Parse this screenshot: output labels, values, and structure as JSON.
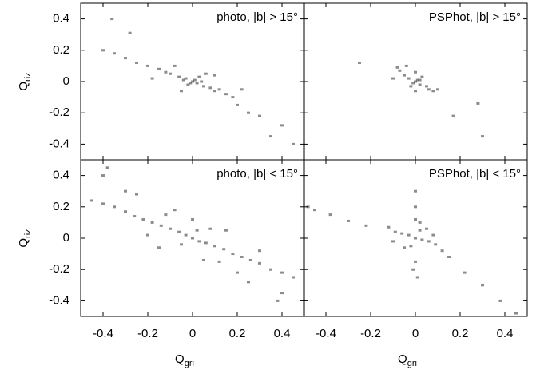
{
  "chart_data": [
    {
      "type": "scatter",
      "annotation": "photo, |b| > 15°",
      "color": "#1a1a1a",
      "xlim": [
        -0.5,
        0.5
      ],
      "ylim": [
        -0.5,
        0.5
      ],
      "xticks": [
        -0.4,
        -0.2,
        0,
        0.2,
        0.4
      ],
      "yticks": [
        -0.4,
        -0.2,
        0,
        0.2,
        0.4
      ],
      "ylabel": "Q",
      "ylabel_sub": "riz",
      "x": [
        0,
        0.02,
        -0.03,
        0.05,
        -0.06,
        0.08,
        -0.1,
        0.1,
        -0.02,
        0.03,
        0.12,
        -0.12,
        -0.15,
        0.15,
        -0.2,
        -0.25,
        -0.3,
        -0.35,
        -0.4,
        0.2,
        0.25,
        0.3,
        0.4,
        -0.36,
        -0.28,
        0.18,
        -0.05,
        0.06,
        -0.08,
        0.1,
        0.35,
        0.45,
        -0.18,
        0.22,
        0.01,
        -0.01,
        0.04,
        -0.04
      ],
      "y": [
        0,
        -0.01,
        0.02,
        -0.03,
        0.03,
        -0.04,
        0.05,
        -0.06,
        -0.02,
        0.03,
        -0.05,
        0.06,
        0.08,
        -0.08,
        0.1,
        0.12,
        0.15,
        0.18,
        0.2,
        -0.15,
        -0.2,
        -0.22,
        -0.28,
        0.4,
        0.31,
        -0.1,
        -0.06,
        0.05,
        0.1,
        0.04,
        -0.35,
        -0.4,
        0.02,
        -0.05,
        0.01,
        -0.01,
        0,
        0.01
      ]
    },
    {
      "type": "scatter",
      "annotation": "PSPhot, |b| > 15°",
      "color": "#1a1a1a",
      "xlim": [
        -0.5,
        0.5
      ],
      "ylim": [
        -0.5,
        0.5
      ],
      "xticks": [
        -0.4,
        -0.2,
        0,
        0.2,
        0.4
      ],
      "yticks": [
        -0.4,
        -0.2,
        0,
        0.2,
        0.4
      ],
      "x": [
        0,
        0.02,
        -0.03,
        0.05,
        -0.05,
        0.03,
        -0.02,
        0.06,
        -0.07,
        -0.08,
        0.08,
        -0.04,
        0.1,
        0,
        0,
        -0.25,
        0.28,
        0.3,
        0.17,
        -0.1,
        0.01,
        -0.01,
        0.02
      ],
      "y": [
        0,
        -0.02,
        0.02,
        -0.03,
        0.04,
        0.03,
        -0.03,
        -0.05,
        0.07,
        0.09,
        -0.06,
        0.1,
        -0.05,
        0.06,
        -0.06,
        0.12,
        -0.14,
        -0.35,
        -0.22,
        0.02,
        0.01,
        -0.01,
        0.01
      ]
    },
    {
      "type": "scatter",
      "annotation": "photo, |b| < 15°",
      "color": "#1a1a1a",
      "xlim": [
        -0.5,
        0.5
      ],
      "ylim": [
        -0.5,
        0.5
      ],
      "xticks": [
        -0.4,
        -0.2,
        0,
        0.2,
        0.4
      ],
      "yticks": [
        -0.4,
        -0.2,
        0,
        0.2,
        0.4
      ],
      "xlabel": "Q",
      "xlabel_sub": "gri",
      "ylabel": "Q",
      "ylabel_sub": "riz",
      "x": [
        0,
        0.03,
        -0.03,
        0.06,
        -0.06,
        0.1,
        -0.1,
        0.14,
        -0.14,
        0.18,
        -0.18,
        0.22,
        -0.22,
        0.26,
        -0.26,
        0.3,
        -0.3,
        0.35,
        -0.35,
        0.4,
        -0.4,
        0.45,
        -0.45,
        0.02,
        -0.05,
        0.08,
        -0.12,
        0.12,
        -0.2,
        0.2,
        -0.3,
        0.3,
        -0.4,
        0.4,
        -0.15,
        0.15,
        0,
        -0.08,
        0.05,
        -0.25,
        0.25,
        -0.38,
        0.38
      ],
      "y": [
        0,
        -0.02,
        0.02,
        -0.03,
        0.04,
        -0.05,
        0.06,
        -0.07,
        0.08,
        -0.1,
        0.1,
        -0.12,
        0.12,
        -0.14,
        0.14,
        -0.16,
        0.17,
        -0.2,
        0.2,
        -0.22,
        0.22,
        -0.25,
        0.24,
        0.05,
        -0.04,
        0.06,
        0.15,
        -0.15,
        0.02,
        -0.22,
        0.3,
        -0.08,
        0.4,
        -0.35,
        -0.06,
        0.05,
        0.12,
        0.18,
        -0.14,
        0.28,
        -0.28,
        0.45,
        -0.4
      ]
    },
    {
      "type": "scatter",
      "annotation": "PSPhot, |b| < 15°",
      "color": "#1a1a1a",
      "xlim": [
        -0.5,
        0.5
      ],
      "ylim": [
        -0.5,
        0.5
      ],
      "xticks": [
        -0.4,
        -0.2,
        0,
        0.2,
        0.4
      ],
      "yticks": [
        -0.4,
        -0.2,
        0,
        0.2,
        0.4
      ],
      "xlabel": "Q",
      "xlabel_sub": "gri",
      "x": [
        0,
        0.03,
        -0.03,
        0.06,
        -0.06,
        0.09,
        -0.09,
        0.02,
        -0.02,
        0.05,
        -0.05,
        -0.12,
        0.12,
        -0.45,
        -0.38,
        -0.3,
        -0.22,
        0.15,
        0.22,
        0.3,
        0.38,
        0.45,
        0,
        0,
        0,
        0.01,
        0,
        -0.01,
        0.02,
        -0.1,
        0.08,
        -0.48
      ],
      "y": [
        0,
        -0.01,
        0.02,
        -0.02,
        0.03,
        -0.04,
        0.04,
        0.05,
        -0.05,
        0.06,
        -0.06,
        0.07,
        -0.08,
        0.18,
        0.15,
        0.11,
        0.08,
        -0.12,
        -0.22,
        -0.3,
        -0.4,
        -0.48,
        0.3,
        0.2,
        -0.15,
        -0.25,
        0.12,
        -0.2,
        0.1,
        -0.02,
        0.02,
        0.2
      ]
    }
  ]
}
